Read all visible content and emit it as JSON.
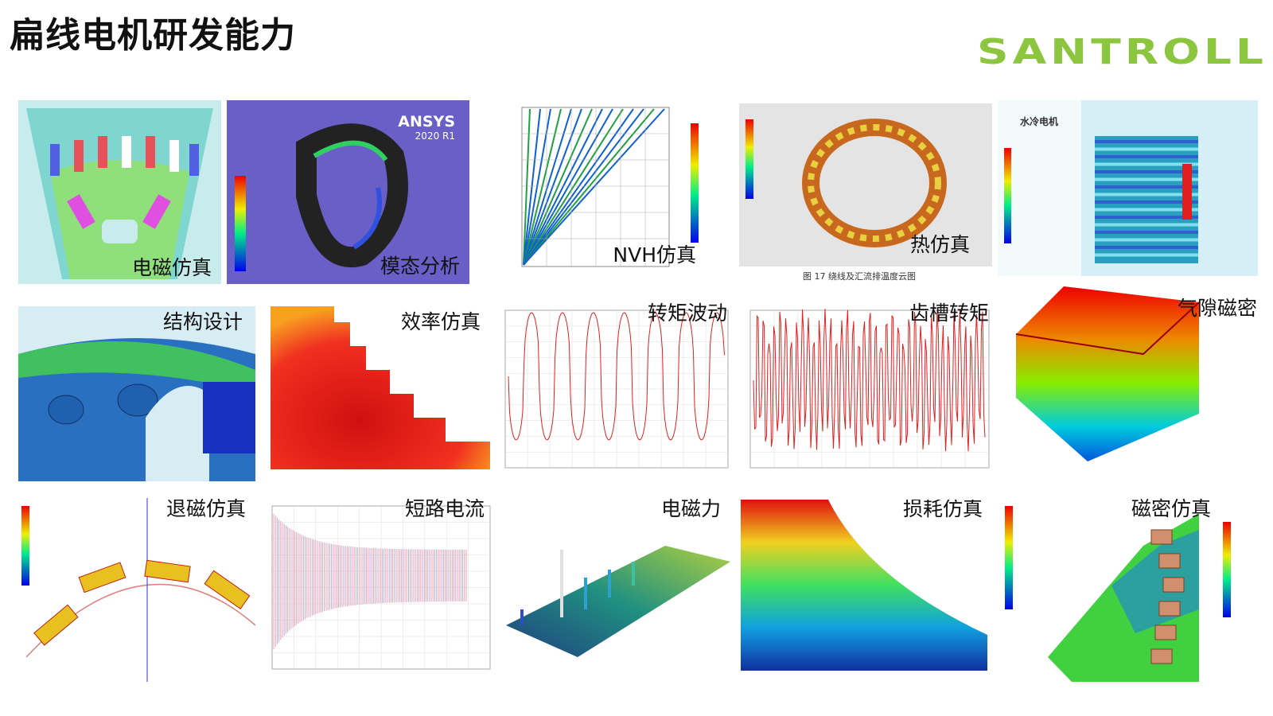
{
  "header": {
    "title": "扁线电机研发能力",
    "logo": "SANTROLL"
  },
  "tiles": [
    {
      "label": "电磁仿真"
    },
    {
      "label": "模态分析",
      "brand": "ANSYS",
      "version": "2020 R1"
    },
    {
      "label": "NVH仿真"
    },
    {
      "label": "热仿真",
      "caption": "图 17  绕线及汇流排温度云图"
    },
    {
      "label": "水冷电机"
    },
    {
      "label": "结构设计"
    },
    {
      "label": "效率仿真"
    },
    {
      "label": "转矩波动"
    },
    {
      "label": "齿槽转矩"
    },
    {
      "label": "气隙磁密"
    },
    {
      "label": "退磁仿真"
    },
    {
      "label": "短路电流"
    },
    {
      "label": "电磁力"
    },
    {
      "label": "损耗仿真"
    },
    {
      "label": "磁密仿真"
    }
  ]
}
